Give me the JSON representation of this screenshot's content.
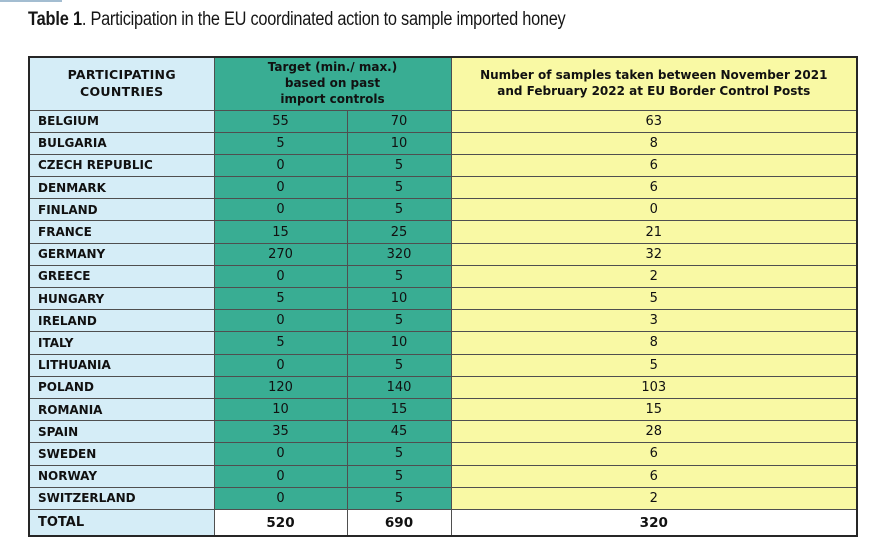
{
  "title": {
    "bold": "Table 1",
    "rest": ". Participation in the EU coordinated action to sample imported honey"
  },
  "table": {
    "headers": {
      "countries": "PARTICIPATING\nCOUNTRIES",
      "target": "Target (min./ max.)\nbased on past\nimport controls",
      "samples": "Number of samples taken between November 2021\nand February 2022 at EU Border Control Posts"
    },
    "rows": [
      {
        "country": "BELGIUM",
        "min": "55",
        "max": "70",
        "samples": "63"
      },
      {
        "country": "BULGARIA",
        "min": "5",
        "max": "10",
        "samples": "8"
      },
      {
        "country": "CZECH REPUBLIC",
        "min": "0",
        "max": "5",
        "samples": "6"
      },
      {
        "country": "DENMARK",
        "min": "0",
        "max": "5",
        "samples": "6"
      },
      {
        "country": "FINLAND",
        "min": "0",
        "max": "5",
        "samples": "0"
      },
      {
        "country": "FRANCE",
        "min": "15",
        "max": "25",
        "samples": "21"
      },
      {
        "country": "GERMANY",
        "min": "270",
        "max": "320",
        "samples": "32"
      },
      {
        "country": "GREECE",
        "min": "0",
        "max": "5",
        "samples": "2"
      },
      {
        "country": "HUNGARY",
        "min": "5",
        "max": "10",
        "samples": "5"
      },
      {
        "country": "IRELAND",
        "min": "0",
        "max": "5",
        "samples": "3"
      },
      {
        "country": "ITALY",
        "min": "5",
        "max": "10",
        "samples": "8"
      },
      {
        "country": "LITHUANIA",
        "min": "0",
        "max": "5",
        "samples": "5"
      },
      {
        "country": "POLAND",
        "min": "120",
        "max": "140",
        "samples": "103"
      },
      {
        "country": "ROMANIA",
        "min": "10",
        "max": "15",
        "samples": "15"
      },
      {
        "country": "SPAIN",
        "min": "35",
        "max": "45",
        "samples": "28"
      },
      {
        "country": "SWEDEN",
        "min": "0",
        "max": "5",
        "samples": "6"
      },
      {
        "country": "NORWAY",
        "min": "0",
        "max": "5",
        "samples": "6"
      },
      {
        "country": "SWITZERLAND",
        "min": "0",
        "max": "5",
        "samples": "2"
      }
    ],
    "total": {
      "country": "TOTAL",
      "min": "520",
      "max": "690",
      "samples": "320"
    }
  },
  "colors": {
    "country_column": "#d5edf7",
    "target_column": "#39ad93",
    "samples_column": "#f9f9a4",
    "total_row": "#ffffff",
    "inner_border": "#4f4f4f",
    "outer_border": "#262626"
  }
}
